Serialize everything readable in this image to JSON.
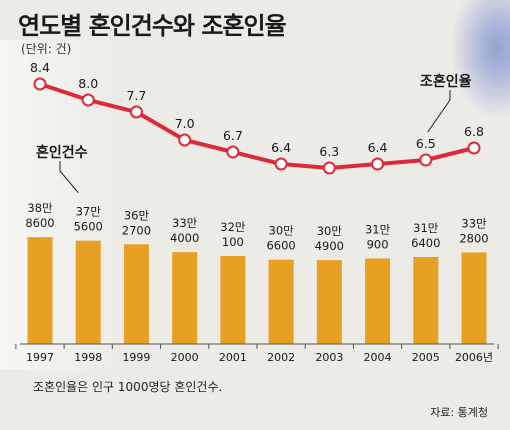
{
  "title": "연도별 혼인건수와 조혼인율",
  "unit_label": "(단위: 건)",
  "footnote": "조혼인율은 인구 1000명당 혼인건수.",
  "source": "자료: 통계청",
  "colors": {
    "bar": "#e8a023",
    "line": "#dd2a3b",
    "marker_fill": "#ffffff",
    "axis": "#555555",
    "text": "#1a1a1a"
  },
  "chart_data": {
    "type": "bar",
    "categories": [
      "1997",
      "1998",
      "1999",
      "2000",
      "2001",
      "2002",
      "2003",
      "2004",
      "2005",
      "2006년"
    ],
    "series": [
      {
        "name": "혼인건수",
        "type": "bar",
        "values": [
          388600,
          375600,
          362700,
          334000,
          320100,
          306600,
          304900,
          310900,
          316400,
          332800
        ],
        "labels_top": [
          "38만",
          "37만",
          "36만",
          "33만",
          "32만",
          "30만",
          "30만",
          "31만",
          "31만",
          "33만"
        ],
        "labels_bottom": [
          "8600",
          "5600",
          "2700",
          "4000",
          "100",
          "6600",
          "4900",
          "900",
          "6400",
          "2800"
        ]
      },
      {
        "name": "조혼인율",
        "type": "line",
        "values": [
          8.4,
          8.0,
          7.7,
          7.0,
          6.7,
          6.4,
          6.3,
          6.4,
          6.5,
          6.8
        ],
        "labels": [
          "8.4",
          "8.0",
          "7.7",
          "7.0",
          "6.7",
          "6.4",
          "6.3",
          "6.4",
          "6.5",
          "6.8"
        ]
      }
    ]
  }
}
